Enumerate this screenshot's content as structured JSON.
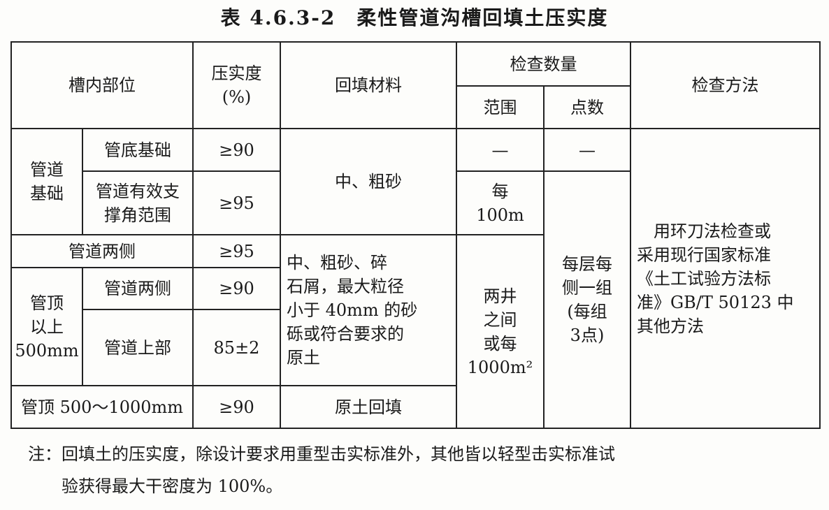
{
  "title": "表 4.6.3-2　柔性管道沟槽回填土压实度",
  "headers": {
    "position": "槽内部位",
    "compaction": "压实度\n(%)",
    "material": "回填材料",
    "inspect_qty": "检查数量",
    "range": "范围",
    "points": "点数",
    "method": "检查方法"
  },
  "cells": {
    "pipe_base": "管道\n基础",
    "base_bottom": "管底基础",
    "base_bottom_val": "≥90",
    "support_angle": "管道有效支\n撑角范围",
    "support_angle_val": "≥95",
    "mat1": "中、粗砂",
    "range1": "—",
    "points1": "—",
    "range2": "每\n100m",
    "both_sides": "管道两侧",
    "both_sides_val": "≥95",
    "top_above": "管顶\n以上\n500mm",
    "top_sides": "管道两侧",
    "top_sides_val": "≥90",
    "top_upper": "管道上部",
    "top_upper_val": "85±2",
    "mat2": "中、粗砂、碎\n石屑，最大粒径\n小于 40mm 的砂\n砾或符合要求的\n原土",
    "range3": "两井\n之间\n或每\n1000m²",
    "points2": "每层每\n侧一组\n(每组\n3点)",
    "method": "　用环刀法检查或\n采用现行国家标准\n《土工试验方法标\n准》GB/T 50123 中\n其他方法",
    "top_500_1000": "管顶 500～1000mm",
    "top_500_1000_val": "≥90",
    "mat3": "原土回填"
  },
  "note": {
    "line1": "注：回填土的压实度，除设计要求用重型击实标准外，其他皆以轻型击实标准试",
    "line2": "验获得最大干密度为 100%。"
  }
}
